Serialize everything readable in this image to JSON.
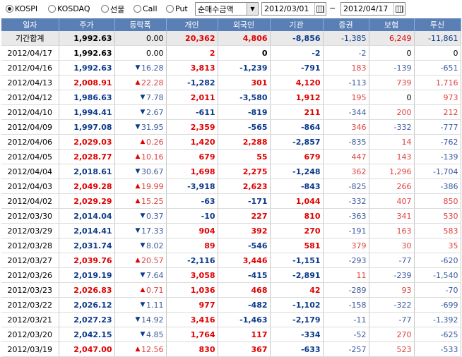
{
  "toolbar": {
    "market_options": [
      {
        "label": "KOSPI",
        "selected": true
      },
      {
        "label": "KOSDAQ",
        "selected": false
      },
      {
        "label": "선물",
        "selected": false
      },
      {
        "label": "Call",
        "selected": false
      },
      {
        "label": "Put",
        "selected": false
      }
    ],
    "metric_select": "순매수금액",
    "date_from": "2012/03/01",
    "date_sep": "~",
    "date_to": "2012/04/17"
  },
  "columns": [
    "일자",
    "주가",
    "등락폭",
    "개인",
    "외국인",
    "기관",
    "증권",
    "보험",
    "투신"
  ],
  "total_row": {
    "date": "기간합계",
    "price": "1,992.63",
    "change": "0.00",
    "indiv": "20,362",
    "foreign": "4,806",
    "inst": "-8,856",
    "sec": "-1,385",
    "ins": "6,249",
    "trust": "-11,861"
  },
  "rows": [
    {
      "date": "2012/04/17",
      "price": "1,992.63",
      "dir": "flat",
      "change": "0.00",
      "indiv": "2",
      "foreign": "0",
      "inst": "-2",
      "sec": "-2",
      "ins": "0",
      "trust": "0"
    },
    {
      "date": "2012/04/16",
      "price": "1,992.63",
      "dir": "down",
      "change": "16.28",
      "indiv": "3,813",
      "foreign": "-1,239",
      "inst": "-791",
      "sec": "183",
      "ins": "-139",
      "trust": "-651"
    },
    {
      "date": "2012/04/13",
      "price": "2,008.91",
      "dir": "up",
      "change": "22.28",
      "indiv": "-1,282",
      "foreign": "301",
      "inst": "4,120",
      "sec": "-113",
      "ins": "739",
      "trust": "1,716"
    },
    {
      "date": "2012/04/12",
      "price": "1,986.63",
      "dir": "down",
      "change": "7.78",
      "indiv": "2,011",
      "foreign": "-3,580",
      "inst": "1,912",
      "sec": "195",
      "ins": "0",
      "trust": "973"
    },
    {
      "date": "2012/04/10",
      "price": "1,994.41",
      "dir": "down",
      "change": "2.67",
      "indiv": "-611",
      "foreign": "-819",
      "inst": "211",
      "sec": "-344",
      "ins": "200",
      "trust": "212"
    },
    {
      "date": "2012/04/09",
      "price": "1,997.08",
      "dir": "down",
      "change": "31.95",
      "indiv": "2,359",
      "foreign": "-565",
      "inst": "-864",
      "sec": "346",
      "ins": "-332",
      "trust": "-777"
    },
    {
      "date": "2012/04/06",
      "price": "2,029.03",
      "dir": "up",
      "change": "0.26",
      "indiv": "1,420",
      "foreign": "2,288",
      "inst": "-2,857",
      "sec": "-835",
      "ins": "14",
      "trust": "-762"
    },
    {
      "date": "2012/04/05",
      "price": "2,028.77",
      "dir": "up",
      "change": "10.16",
      "indiv": "679",
      "foreign": "55",
      "inst": "679",
      "sec": "447",
      "ins": "143",
      "trust": "-139"
    },
    {
      "date": "2012/04/04",
      "price": "2,018.61",
      "dir": "down",
      "change": "30.67",
      "indiv": "1,698",
      "foreign": "2,275",
      "inst": "-1,248",
      "sec": "362",
      "ins": "1,296",
      "trust": "-1,704"
    },
    {
      "date": "2012/04/03",
      "price": "2,049.28",
      "dir": "up",
      "change": "19.99",
      "indiv": "-3,918",
      "foreign": "2,623",
      "inst": "-843",
      "sec": "-825",
      "ins": "266",
      "trust": "-386"
    },
    {
      "date": "2012/04/02",
      "price": "2,029.29",
      "dir": "up",
      "change": "15.25",
      "indiv": "-63",
      "foreign": "-171",
      "inst": "1,044",
      "sec": "-332",
      "ins": "407",
      "trust": "850"
    },
    {
      "date": "2012/03/30",
      "price": "2,014.04",
      "dir": "down",
      "change": "0.37",
      "indiv": "-10",
      "foreign": "227",
      "inst": "810",
      "sec": "-363",
      "ins": "341",
      "trust": "530"
    },
    {
      "date": "2012/03/29",
      "price": "2,014.41",
      "dir": "down",
      "change": "17.33",
      "indiv": "904",
      "foreign": "392",
      "inst": "270",
      "sec": "-191",
      "ins": "163",
      "trust": "583"
    },
    {
      "date": "2012/03/28",
      "price": "2,031.74",
      "dir": "down",
      "change": "8.02",
      "indiv": "89",
      "foreign": "-546",
      "inst": "581",
      "sec": "379",
      "ins": "30",
      "trust": "35"
    },
    {
      "date": "2012/03/27",
      "price": "2,039.76",
      "dir": "up",
      "change": "20.57",
      "indiv": "-2,116",
      "foreign": "3,446",
      "inst": "-1,151",
      "sec": "-293",
      "ins": "-77",
      "trust": "-620"
    },
    {
      "date": "2012/03/26",
      "price": "2,019.19",
      "dir": "down",
      "change": "7.64",
      "indiv": "3,058",
      "foreign": "-415",
      "inst": "-2,891",
      "sec": "11",
      "ins": "-239",
      "trust": "-1,540"
    },
    {
      "date": "2012/03/23",
      "price": "2,026.83",
      "dir": "up",
      "change": "0.71",
      "indiv": "1,036",
      "foreign": "468",
      "inst": "42",
      "sec": "-289",
      "ins": "93",
      "trust": "-70"
    },
    {
      "date": "2012/03/22",
      "price": "2,026.12",
      "dir": "down",
      "change": "1.11",
      "indiv": "977",
      "foreign": "-482",
      "inst": "-1,102",
      "sec": "-158",
      "ins": "-322",
      "trust": "-699"
    },
    {
      "date": "2012/03/21",
      "price": "2,027.23",
      "dir": "down",
      "change": "14.92",
      "indiv": "3,416",
      "foreign": "-1,463",
      "inst": "-2,179",
      "sec": "-11",
      "ins": "-77",
      "trust": "-1,392"
    },
    {
      "date": "2012/03/20",
      "price": "2,042.15",
      "dir": "down",
      "change": "4.85",
      "indiv": "1,764",
      "foreign": "117",
      "inst": "-334",
      "sec": "-52",
      "ins": "270",
      "trust": "-625"
    },
    {
      "date": "2012/03/19",
      "price": "2,047.00",
      "dir": "up",
      "change": "12.56",
      "indiv": "830",
      "foreign": "367",
      "inst": "-633",
      "sec": "-257",
      "ins": "523",
      "trust": "-533"
    }
  ],
  "colors": {
    "header_bg": "#5a7fb5",
    "up": "#e00000",
    "down": "#0b3a8a",
    "total_bg": "#e9e9e9"
  }
}
